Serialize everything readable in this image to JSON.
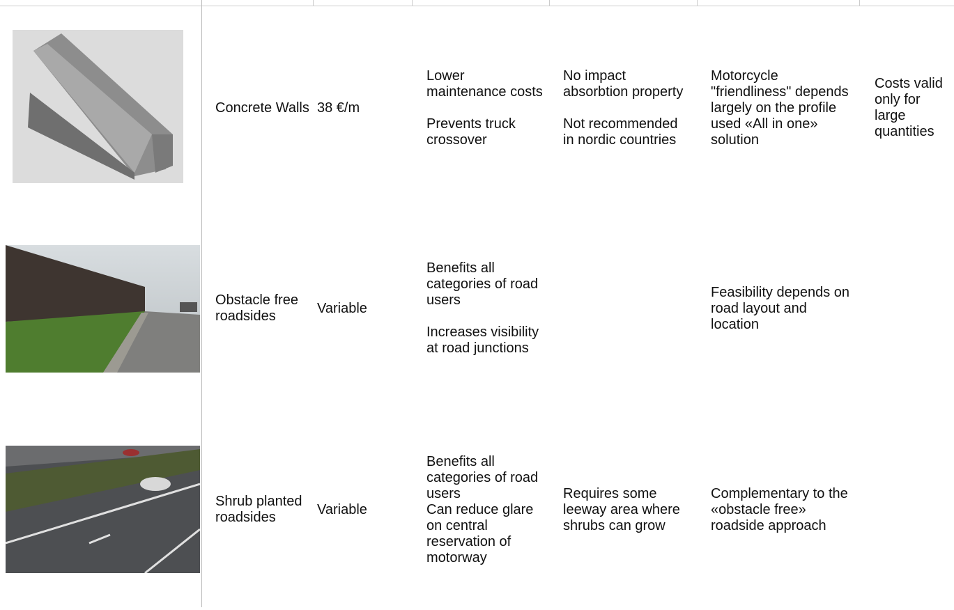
{
  "table": {
    "rows": [
      {
        "name": "Concrete Walls",
        "cost": "38 €/m",
        "advantages": [
          "Lower maintenance costs",
          "Prevents truck crossover"
        ],
        "disadvantages": [
          "No impact absorbtion property",
          "Not recommended in nordic countries"
        ],
        "remarks": [
          "Motorcycle \"friendliness\" depends largely on the profile used «All in one» solution"
        ],
        "notes": [
          "Costs valid only for large quantities"
        ]
      },
      {
        "name": "Obstacle free roadsides",
        "cost": "Variable",
        "advantages": [
          "Benefits all categories of road users",
          "Increases visibility at road junctions"
        ],
        "disadvantages": [],
        "remarks": [
          "Feasibility depends on road layout and location"
        ],
        "notes": []
      },
      {
        "name": "Shrub planted roadsides",
        "cost": "Variable",
        "advantages": [
          "Benefits all categories of road users",
          "Can reduce glare on central reservation of motorway"
        ],
        "disadvantages": [
          "Requires some leeway area where shrubs can grow"
        ],
        "remarks": [
          "Complementary to the «obstacle free» roadside approach"
        ],
        "notes": []
      }
    ]
  }
}
